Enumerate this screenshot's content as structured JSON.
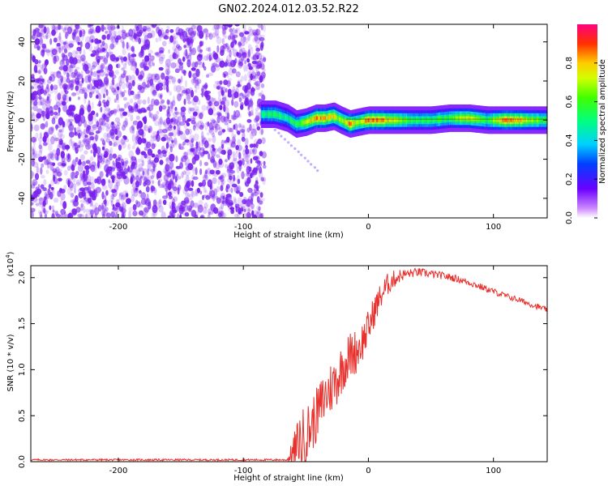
{
  "title": "GN02.2024.012.03.52.R22",
  "colors": {
    "line": "#e8302c",
    "scatter": "#7a22ee",
    "axis": "#000000"
  },
  "chart_data": [
    {
      "type": "heatmap",
      "xlabel": "Height of straight line (km)",
      "ylabel": "Frequency (Hz)",
      "xlim": [
        -270,
        143
      ],
      "ylim": [
        -50,
        49
      ],
      "xticks": [
        {
          "v": -200,
          "label": "-200"
        },
        {
          "v": -100,
          "label": "-100"
        },
        {
          "v": 0,
          "label": "0"
        },
        {
          "v": 100,
          "label": "100"
        }
      ],
      "yticks": [
        {
          "v": -40,
          "label": "-40"
        },
        {
          "v": -20,
          "label": "-20"
        },
        {
          "v": 0,
          "label": "0"
        },
        {
          "v": 20,
          "label": "20"
        },
        {
          "v": 40,
          "label": "40"
        }
      ],
      "noise_region": {
        "x": [
          -270,
          -83
        ],
        "y": [
          -50,
          49
        ]
      },
      "ridge": [
        {
          "x": -85,
          "y": 3,
          "a": 0.55
        },
        {
          "x": -75,
          "y": 3,
          "a": 0.6
        },
        {
          "x": -65,
          "y": 1,
          "a": 0.55
        },
        {
          "x": -58,
          "y": -2,
          "a": 0.6
        },
        {
          "x": -50,
          "y": -1,
          "a": 0.75
        },
        {
          "x": -42,
          "y": 1,
          "a": 0.9
        },
        {
          "x": -35,
          "y": 1,
          "a": 0.9
        },
        {
          "x": -28,
          "y": 2,
          "a": 0.8
        },
        {
          "x": -22,
          "y": 0,
          "a": 0.7
        },
        {
          "x": -15,
          "y": -2,
          "a": 0.95
        },
        {
          "x": -8,
          "y": -1,
          "a": 0.7
        },
        {
          "x": 0,
          "y": 0,
          "a": 0.95
        },
        {
          "x": 10,
          "y": 0,
          "a": 0.9
        },
        {
          "x": 20,
          "y": 0,
          "a": 0.8
        },
        {
          "x": 35,
          "y": 0,
          "a": 0.6
        },
        {
          "x": 50,
          "y": 0,
          "a": 0.6
        },
        {
          "x": 65,
          "y": 1,
          "a": 0.65
        },
        {
          "x": 80,
          "y": 1,
          "a": 0.85
        },
        {
          "x": 95,
          "y": 0,
          "a": 0.6
        },
        {
          "x": 110,
          "y": 0,
          "a": 0.95
        },
        {
          "x": 125,
          "y": 0,
          "a": 0.8
        },
        {
          "x": 143,
          "y": 0,
          "a": 0.6
        }
      ],
      "colorbar": {
        "label": "Normalized spectral amplitude",
        "range": [
          0,
          1
        ],
        "ticks": [
          {
            "v": 0.0,
            "label": "0.0"
          },
          {
            "v": 0.2,
            "label": "0.2"
          },
          {
            "v": 0.4,
            "label": "0.4"
          },
          {
            "v": 0.6,
            "label": "0.6"
          },
          {
            "v": 0.8,
            "label": "0.8"
          }
        ]
      }
    },
    {
      "type": "line",
      "xlabel": "Height of straight line (km)",
      "ylabel": "SNR (10 * v/v)",
      "multiplier": "(x10",
      "multiplier_exp": "4",
      "multiplier_close": ")",
      "xlim": [
        -270,
        143
      ],
      "ylim": [
        0,
        2.13
      ],
      "xticks": [
        {
          "v": -200,
          "label": "-200"
        },
        {
          "v": -100,
          "label": "-100"
        },
        {
          "v": 0,
          "label": "0"
        },
        {
          "v": 100,
          "label": "100"
        }
      ],
      "yticks": [
        {
          "v": 0.0,
          "label": "0.0"
        },
        {
          "v": 0.5,
          "label": "0.5"
        },
        {
          "v": 1.0,
          "label": "1.0"
        },
        {
          "v": 1.5,
          "label": "1.5"
        },
        {
          "v": 2.0,
          "label": "2.0"
        }
      ],
      "envelope_x": [
        -270,
        -65,
        -60,
        -55,
        -50,
        -45,
        -40,
        -35,
        -30,
        -25,
        -20,
        -15,
        -10,
        -5,
        0,
        5,
        10,
        15,
        20,
        25,
        30,
        35,
        40,
        45,
        50,
        60,
        70,
        80,
        90,
        100,
        110,
        120,
        130,
        143
      ],
      "envelope_y": [
        0.02,
        0.02,
        0.1,
        0.2,
        0.3,
        0.4,
        0.55,
        0.7,
        0.8,
        0.9,
        1.05,
        1.15,
        1.2,
        1.3,
        1.45,
        1.65,
        1.8,
        1.92,
        1.98,
        2.02,
        2.04,
        2.05,
        2.06,
        2.05,
        2.04,
        2.02,
        1.99,
        1.95,
        1.9,
        1.85,
        1.8,
        1.76,
        1.71,
        1.65
      ],
      "noise_amplitude_x": [
        -270,
        -65,
        -55,
        -45,
        -30,
        -10,
        10,
        30,
        60,
        143
      ],
      "noise_amplitude_y": [
        0.01,
        0.01,
        0.35,
        0.3,
        0.3,
        0.25,
        0.15,
        0.05,
        0.04,
        0.03
      ]
    }
  ]
}
